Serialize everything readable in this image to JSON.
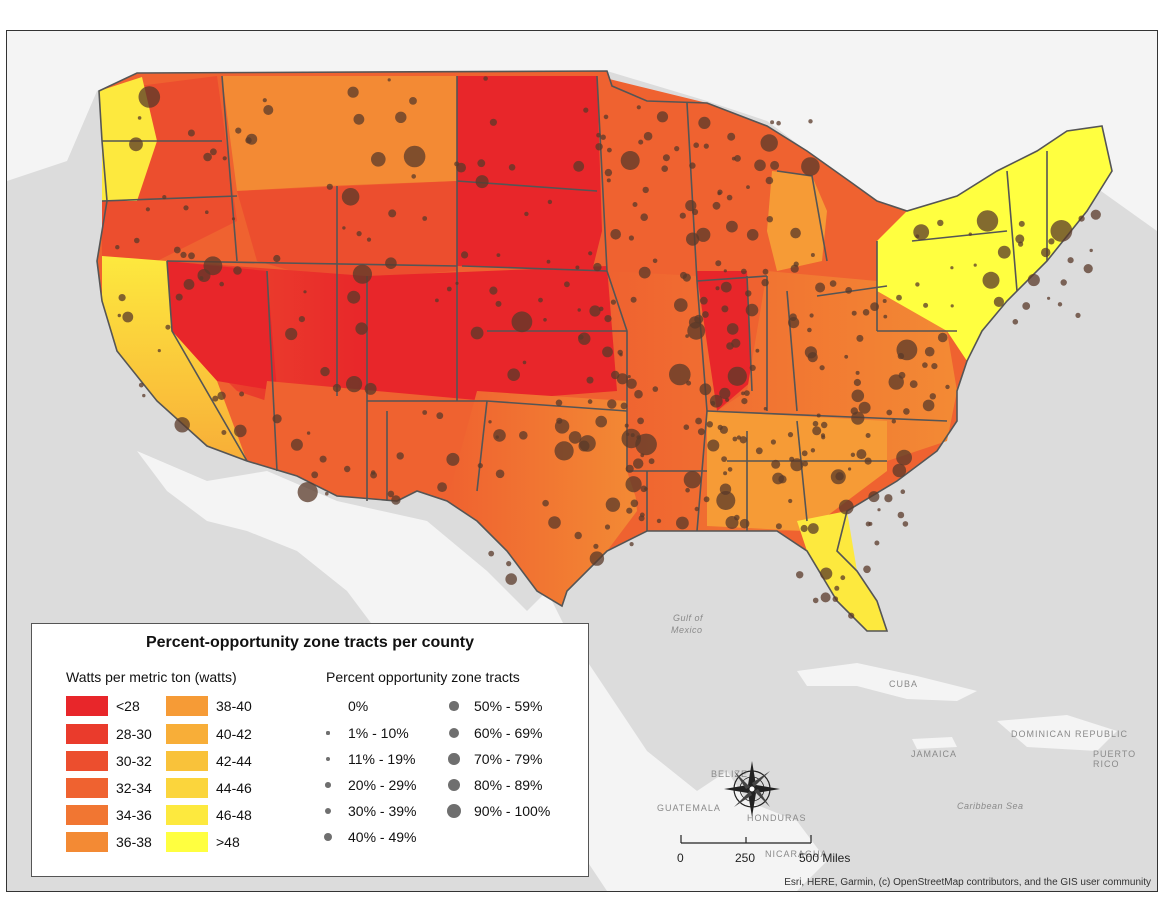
{
  "legend": {
    "title": "Percent-opportunity zone tracts per county",
    "watts_heading": "Watts per metric ton (watts)",
    "watts_classes": [
      {
        "label": "<28",
        "color": "#e8262a"
      },
      {
        "label": "28-30",
        "color": "#ea3b2c"
      },
      {
        "label": "30-32",
        "color": "#ec4e2e"
      },
      {
        "label": "32-34",
        "color": "#ef6230"
      },
      {
        "label": "34-36",
        "color": "#f17632"
      },
      {
        "label": "36-38",
        "color": "#f38a34"
      },
      {
        "label": "38-40",
        "color": "#f69b36"
      },
      {
        "label": "40-42",
        "color": "#f8ae38"
      },
      {
        "label": "42-44",
        "color": "#f9c23a"
      },
      {
        "label": "44-46",
        "color": "#fbd53c"
      },
      {
        "label": "46-48",
        "color": "#fde93e"
      },
      {
        "label": ">48",
        "color": "#ffff40"
      }
    ],
    "percent_heading": "Percent opportunity zone tracts",
    "percent_classes": [
      {
        "label": "0%",
        "size": 0
      },
      {
        "label": "1% - 10%",
        "size": 1
      },
      {
        "label": "11% - 19%",
        "size": 2
      },
      {
        "label": "20% - 29%",
        "size": 3
      },
      {
        "label": "30% - 39%",
        "size": 4
      },
      {
        "label": "40% - 49%",
        "size": 5
      },
      {
        "label": "50% - 59%",
        "size": 6
      },
      {
        "label": "60% - 69%",
        "size": 7
      },
      {
        "label": "70% - 79%",
        "size": 8
      },
      {
        "label": "80% - 89%",
        "size": 9
      },
      {
        "label": "90% - 100%",
        "size": 10
      }
    ]
  },
  "geo_labels": {
    "gulf": "Gulf of",
    "mexico": "Mexico",
    "cuba": "CUBA",
    "dominican_republic": "DOMINICAN REPUBLIC",
    "jamaica": "JAMAICA",
    "puerto_rico": "PUERTO RICO",
    "guatemala": "GUATEMALA",
    "honduras": "HONDURAS",
    "nicaragua": "NICARAGUA",
    "caribbean": "Caribbean Sea",
    "belize": "BELIZE"
  },
  "scale": {
    "ticks": [
      "0",
      "250",
      "500 Miles"
    ]
  },
  "attribution": "Esri, HERE, Garmin, (c) OpenStreetMap contributors, and the GIS user community",
  "colors": {
    "water": "#dcdcdc",
    "land": "#f4f4f4",
    "border": "#555555",
    "dot": "#5a3a2a"
  }
}
